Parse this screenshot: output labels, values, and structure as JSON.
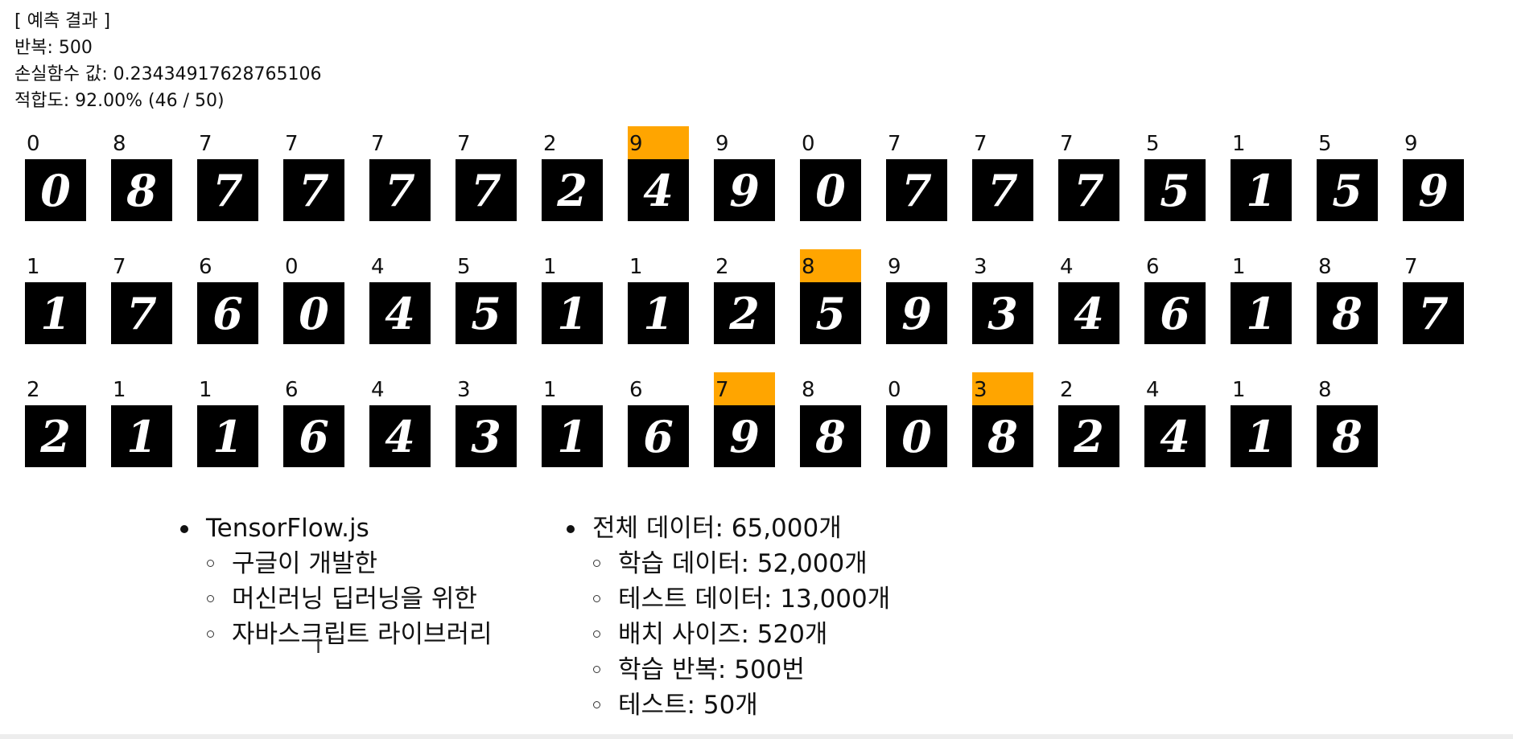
{
  "header": {
    "title": "[ 예측 결과 ]",
    "iterations": "반복: 500",
    "loss": "손실함수 값: 0.23434917628765106",
    "accuracy": "적합도: 92.00% (46 / 50)"
  },
  "colors": {
    "wrong_highlight": "#ffa500",
    "tile_background": "#000000"
  },
  "predictions": [
    [
      {
        "pred": "0",
        "digit": "0",
        "wrong": false
      },
      {
        "pred": "8",
        "digit": "8",
        "wrong": false
      },
      {
        "pred": "7",
        "digit": "7",
        "wrong": false
      },
      {
        "pred": "7",
        "digit": "7",
        "wrong": false
      },
      {
        "pred": "7",
        "digit": "7",
        "wrong": false
      },
      {
        "pred": "7",
        "digit": "7",
        "wrong": false
      },
      {
        "pred": "2",
        "digit": "2",
        "wrong": false
      },
      {
        "pred": "9",
        "digit": "4",
        "wrong": true
      },
      {
        "pred": "9",
        "digit": "9",
        "wrong": false
      },
      {
        "pred": "0",
        "digit": "0",
        "wrong": false
      },
      {
        "pred": "7",
        "digit": "7",
        "wrong": false
      },
      {
        "pred": "7",
        "digit": "7",
        "wrong": false
      },
      {
        "pred": "7",
        "digit": "7",
        "wrong": false
      },
      {
        "pred": "5",
        "digit": "5",
        "wrong": false
      },
      {
        "pred": "1",
        "digit": "1",
        "wrong": false
      },
      {
        "pred": "5",
        "digit": "5",
        "wrong": false
      },
      {
        "pred": "9",
        "digit": "9",
        "wrong": false
      }
    ],
    [
      {
        "pred": "1",
        "digit": "1",
        "wrong": false
      },
      {
        "pred": "7",
        "digit": "7",
        "wrong": false
      },
      {
        "pred": "6",
        "digit": "6",
        "wrong": false
      },
      {
        "pred": "0",
        "digit": "0",
        "wrong": false
      },
      {
        "pred": "4",
        "digit": "4",
        "wrong": false
      },
      {
        "pred": "5",
        "digit": "5",
        "wrong": false
      },
      {
        "pred": "1",
        "digit": "1",
        "wrong": false
      },
      {
        "pred": "1",
        "digit": "1",
        "wrong": false
      },
      {
        "pred": "2",
        "digit": "2",
        "wrong": false
      },
      {
        "pred": "8",
        "digit": "5",
        "wrong": true
      },
      {
        "pred": "9",
        "digit": "9",
        "wrong": false
      },
      {
        "pred": "3",
        "digit": "3",
        "wrong": false
      },
      {
        "pred": "4",
        "digit": "4",
        "wrong": false
      },
      {
        "pred": "6",
        "digit": "6",
        "wrong": false
      },
      {
        "pred": "1",
        "digit": "1",
        "wrong": false
      },
      {
        "pred": "8",
        "digit": "8",
        "wrong": false
      },
      {
        "pred": "7",
        "digit": "7",
        "wrong": false
      }
    ],
    [
      {
        "pred": "2",
        "digit": "2",
        "wrong": false
      },
      {
        "pred": "1",
        "digit": "1",
        "wrong": false
      },
      {
        "pred": "1",
        "digit": "1",
        "wrong": false
      },
      {
        "pred": "6",
        "digit": "6",
        "wrong": false
      },
      {
        "pred": "4",
        "digit": "4",
        "wrong": false
      },
      {
        "pred": "3",
        "digit": "3",
        "wrong": false
      },
      {
        "pred": "1",
        "digit": "1",
        "wrong": false
      },
      {
        "pred": "6",
        "digit": "6",
        "wrong": false
      },
      {
        "pred": "7",
        "digit": "9",
        "wrong": true
      },
      {
        "pred": "8",
        "digit": "8",
        "wrong": false
      },
      {
        "pred": "0",
        "digit": "0",
        "wrong": false
      },
      {
        "pred": "3",
        "digit": "8",
        "wrong": true
      },
      {
        "pred": "2",
        "digit": "2",
        "wrong": false
      },
      {
        "pred": "4",
        "digit": "4",
        "wrong": false
      },
      {
        "pred": "1",
        "digit": "1",
        "wrong": false
      },
      {
        "pred": "8",
        "digit": "8",
        "wrong": false
      }
    ]
  ],
  "info_left": {
    "title": "TensorFlow.js",
    "items": [
      "구글이 개발한",
      "머신러닝 딥러닝을 위한",
      "자바스크립트 라이브러리"
    ]
  },
  "info_right": {
    "title": "전체 데이터: 65,000개",
    "items": [
      "학습 데이터: 52,000개",
      "테스트 데이터: 13,000개",
      "배치 사이즈: 520개",
      "학습 반복: 500번",
      "테스트: 50개"
    ]
  },
  "cursor_glyph": "I"
}
